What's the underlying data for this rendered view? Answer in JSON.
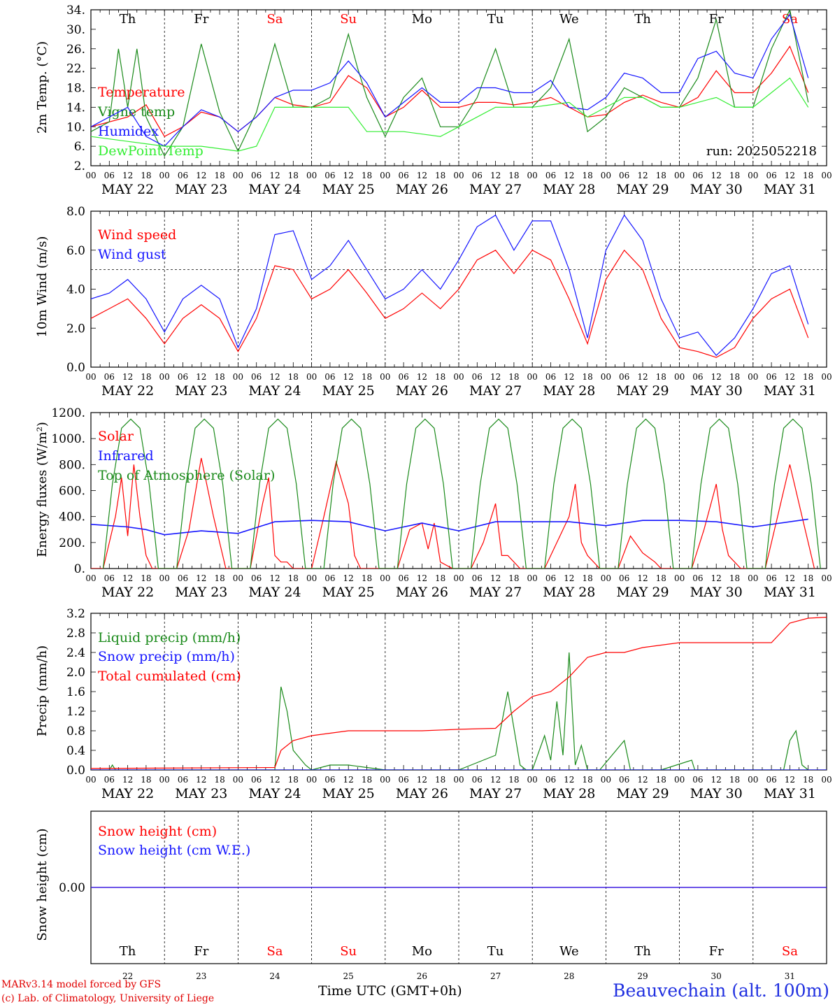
{
  "footer": {
    "credit_line1": "MARv3.14 model forced by GFS",
    "credit_line2": "(c) Lab. of Climatology, University of Liege",
    "xaxis_title": "Time UTC (GMT+0h)",
    "station": "Beauvechain (alt. 100m)"
  },
  "day_names": [
    "Th",
    "Fr",
    "Sa",
    "Su",
    "Mo",
    "Tu",
    "We",
    "Th",
    "Fr",
    "Sa"
  ],
  "weekend_days": [
    2,
    3,
    9
  ],
  "date_labels": [
    "MAY 22",
    "MAY 23",
    "MAY 24",
    "MAY 25",
    "MAY 26",
    "MAY 27",
    "MAY 28",
    "MAY 29",
    "MAY 30",
    "MAY 31"
  ],
  "day_numbers": [
    "22",
    "23",
    "24",
    "25",
    "26",
    "27",
    "28",
    "29",
    "30",
    "31"
  ],
  "hour_ticks": [
    "00",
    "06",
    "12",
    "18"
  ],
  "colors": {
    "red": "#ff0000",
    "dkgreen": "#1a8a1a",
    "blue": "#1515ff",
    "ltgreen": "#33ee33",
    "grid": "#000000"
  },
  "chart_data": [
    {
      "type": "line",
      "ylabel": "2m Temp. (°C)",
      "ylim": [
        2,
        34
      ],
      "yticks": [
        "34.",
        "30.",
        "26.",
        "22.",
        "18.",
        "14.",
        "10.",
        "6.",
        "2."
      ],
      "yvals": [
        34,
        30,
        26,
        22,
        18,
        14,
        10,
        6,
        2
      ],
      "annotation": "run: 2025052218",
      "x_unit": "hours since MAY 22 00 UTC",
      "series": [
        {
          "name": "Temperature",
          "color": "red",
          "x": [
            0,
            12,
            18,
            24,
            30,
            36,
            42,
            48,
            54,
            60,
            66,
            72,
            78,
            84,
            90,
            96,
            102,
            108,
            114,
            120,
            126,
            132,
            138,
            144,
            150,
            156,
            162,
            168,
            174,
            180,
            186,
            192,
            198,
            204,
            210,
            216,
            222,
            228,
            234
          ],
          "values": [
            10,
            12,
            14.5,
            8,
            10,
            13,
            12,
            9,
            12,
            16,
            14.5,
            14,
            15,
            20.5,
            18,
            12,
            14,
            17.5,
            14,
            14,
            15,
            15,
            14.5,
            15,
            16,
            14,
            12,
            12.5,
            15,
            16.5,
            15,
            14,
            16,
            21.5,
            17,
            17,
            21,
            26.5,
            17
          ]
        },
        {
          "name": "Vigne temp",
          "color": "dkgreen",
          "x": [
            0,
            6,
            9,
            12,
            15,
            18,
            24,
            30,
            36,
            42,
            48,
            54,
            60,
            66,
            72,
            78,
            84,
            87,
            90,
            96,
            102,
            108,
            114,
            120,
            126,
            132,
            138,
            144,
            150,
            156,
            162,
            168,
            174,
            180,
            186,
            192,
            198,
            204,
            210,
            216,
            222,
            228,
            234
          ],
          "values": [
            9,
            11,
            26,
            14,
            26,
            12,
            4,
            10,
            27,
            13,
            5,
            13,
            27,
            14,
            14,
            16,
            29,
            22,
            16,
            8,
            16,
            20,
            10,
            10,
            16,
            26,
            14,
            14,
            18,
            28,
            9,
            12,
            18,
            16,
            14,
            14,
            20,
            32,
            14,
            14,
            26,
            34,
            15
          ]
        },
        {
          "name": "Humidex",
          "color": "blue",
          "x": [
            0,
            6,
            12,
            18,
            24,
            30,
            36,
            42,
            48,
            54,
            60,
            66,
            72,
            78,
            84,
            90,
            96,
            102,
            108,
            114,
            120,
            126,
            132,
            138,
            144,
            150,
            156,
            162,
            168,
            174,
            180,
            186,
            192,
            198,
            204,
            210,
            216,
            222,
            228,
            234
          ],
          "values": [
            10,
            12,
            14,
            8,
            6,
            10,
            13.5,
            12,
            9,
            12,
            16,
            17.5,
            17.5,
            19,
            23.5,
            19,
            12,
            15,
            18,
            15,
            15,
            18,
            18,
            17,
            17,
            19.5,
            14,
            13.5,
            16,
            21,
            20,
            17,
            17,
            24,
            25.5,
            21,
            20,
            28,
            33,
            20
          ]
        },
        {
          "name": "DewPoint Temp",
          "color": "ltgreen",
          "x": [
            0,
            6,
            12,
            18,
            24,
            30,
            36,
            42,
            48,
            54,
            60,
            66,
            72,
            78,
            84,
            90,
            96,
            102,
            108,
            114,
            120,
            126,
            132,
            138,
            144,
            150,
            156,
            162,
            168,
            174,
            180,
            186,
            192,
            198,
            204,
            210,
            216,
            222,
            228,
            234
          ],
          "values": [
            8,
            7.5,
            7,
            6.5,
            6,
            6,
            6,
            5.5,
            5,
            6,
            14,
            14,
            14,
            14,
            14,
            9,
            9,
            9,
            8.5,
            8,
            10,
            12,
            14,
            14,
            14,
            14.5,
            15,
            12,
            14,
            16,
            16,
            14,
            14,
            15,
            16,
            14,
            14,
            17,
            20,
            14
          ]
        }
      ]
    },
    {
      "type": "line",
      "ylabel": "10m Wind (m/s)",
      "ylim": [
        0,
        8
      ],
      "yticks": [
        "8.0",
        "6.0",
        "4.0",
        "2.0",
        "0.0"
      ],
      "yvals": [
        8,
        6,
        4,
        2,
        0
      ],
      "ref_line": 5,
      "x_unit": "hours since MAY 22 00 UTC",
      "series": [
        {
          "name": "Wind speed",
          "color": "red",
          "x": [
            0,
            6,
            12,
            18,
            24,
            30,
            36,
            42,
            48,
            54,
            60,
            66,
            72,
            78,
            84,
            90,
            96,
            102,
            108,
            114,
            120,
            126,
            132,
            138,
            144,
            150,
            156,
            162,
            168,
            174,
            180,
            186,
            192,
            198,
            204,
            210,
            216,
            222,
            228,
            234
          ],
          "values": [
            2.5,
            3,
            3.5,
            2.5,
            1.2,
            2.5,
            3.2,
            2.5,
            0.8,
            2.5,
            5.2,
            5,
            3.5,
            4,
            5,
            3.8,
            2.5,
            3,
            3.8,
            3,
            4,
            5.5,
            6,
            4.8,
            6,
            5.5,
            3.5,
            1.2,
            4.5,
            6,
            5,
            2.5,
            1,
            0.8,
            0.5,
            1,
            2.5,
            3.5,
            4,
            1.5
          ]
        },
        {
          "name": "Wind gust",
          "color": "blue",
          "x": [
            0,
            6,
            12,
            18,
            24,
            30,
            36,
            42,
            48,
            54,
            60,
            66,
            72,
            78,
            84,
            90,
            96,
            102,
            108,
            114,
            120,
            126,
            132,
            138,
            144,
            150,
            156,
            162,
            168,
            174,
            180,
            186,
            192,
            198,
            204,
            210,
            216,
            222,
            228,
            234
          ],
          "values": [
            3.5,
            3.8,
            4.5,
            3.5,
            1.8,
            3.5,
            4.2,
            3.5,
            1,
            3,
            6.8,
            7,
            4.5,
            5.2,
            6.5,
            5,
            3.5,
            4,
            5,
            4,
            5.5,
            7.2,
            7.8,
            6,
            7.5,
            7.5,
            5,
            1.5,
            6,
            7.8,
            6.5,
            3.5,
            1.5,
            1.8,
            0.6,
            1.5,
            3,
            4.8,
            5.2,
            2.2
          ]
        }
      ]
    },
    {
      "type": "line",
      "ylabel": "Energy fluxes (W/m²)",
      "ylim": [
        0,
        1200
      ],
      "yticks": [
        "1200.",
        "1000.",
        "800.",
        "600.",
        "400.",
        "200.",
        "0."
      ],
      "yvals": [
        1200,
        1000,
        800,
        600,
        400,
        200,
        0
      ],
      "x_unit": "hours since MAY 22 00 UTC",
      "series": [
        {
          "name": "Solar",
          "color": "red",
          "x": [
            0,
            4,
            8,
            10,
            12,
            14,
            16,
            18,
            20,
            28,
            32,
            36,
            40,
            44,
            52,
            56,
            58,
            60,
            62,
            64,
            66,
            72,
            76,
            80,
            84,
            86,
            88,
            92,
            100,
            104,
            108,
            110,
            112,
            114,
            118,
            124,
            128,
            132,
            134,
            136,
            140,
            148,
            152,
            156,
            158,
            160,
            162,
            166,
            172,
            176,
            180,
            184,
            186,
            196,
            200,
            204,
            206,
            208,
            212,
            220,
            224,
            228,
            232,
            236
          ],
          "values": [
            0,
            0,
            400,
            700,
            250,
            800,
            400,
            100,
            0,
            0,
            300,
            850,
            400,
            0,
            0,
            500,
            700,
            100,
            50,
            50,
            0,
            0,
            400,
            820,
            500,
            100,
            0,
            0,
            0,
            300,
            350,
            150,
            350,
            50,
            0,
            0,
            200,
            500,
            100,
            100,
            0,
            0,
            200,
            400,
            650,
            200,
            100,
            0,
            0,
            250,
            120,
            50,
            0,
            0,
            300,
            650,
            300,
            100,
            0,
            0,
            400,
            800,
            400,
            0
          ]
        },
        {
          "name": "Infrared",
          "color": "blue",
          "x": [
            0,
            12,
            18,
            24,
            36,
            48,
            60,
            72,
            84,
            96,
            108,
            120,
            132,
            144,
            156,
            168,
            180,
            192,
            204,
            216,
            234
          ],
          "values": [
            340,
            320,
            300,
            260,
            290,
            270,
            360,
            370,
            360,
            290,
            350,
            290,
            360,
            360,
            360,
            330,
            370,
            370,
            360,
            320,
            380
          ]
        },
        {
          "name": "Top of Atmosphere (Solar)",
          "color": "dkgreen",
          "x": [
            4,
            7,
            10,
            13,
            16,
            19,
            22
          ],
          "values": [
            0,
            650,
            1080,
            1150,
            1080,
            650,
            0
          ],
          "repeat_daily": true
        }
      ]
    },
    {
      "type": "line",
      "ylabel": "Precip (mm/h)",
      "ylim": [
        0,
        3.2
      ],
      "yticks": [
        "3.2",
        "2.8",
        "2.4",
        "2.0",
        "1.6",
        "1.2",
        "0.8",
        "0.4",
        "0.0"
      ],
      "yvals": [
        3.2,
        2.8,
        2.4,
        2.0,
        1.6,
        1.2,
        0.8,
        0.4,
        0.0
      ],
      "x_unit": "hours since MAY 22 00 UTC",
      "series": [
        {
          "name": "Liquid precip (mm/h)",
          "color": "dkgreen",
          "x": [
            0,
            6,
            7,
            8,
            48,
            60,
            62,
            64,
            66,
            70,
            72,
            78,
            84,
            90,
            96,
            120,
            132,
            136,
            140,
            142,
            144,
            148,
            150,
            152,
            154,
            156,
            158,
            160,
            162,
            166,
            174,
            176,
            178,
            186,
            196,
            197,
            198,
            226,
            228,
            230,
            232,
            234
          ],
          "values": [
            0,
            0,
            0.1,
            0,
            0,
            0,
            1.7,
            1.2,
            0.4,
            0.1,
            0,
            0.1,
            0.1,
            0.05,
            0,
            0,
            0.3,
            1.6,
            0.1,
            0,
            0,
            0.7,
            0.2,
            1.4,
            0.3,
            2.4,
            0.1,
            0.5,
            0,
            0,
            0.6,
            0,
            0,
            0,
            0.2,
            0,
            0,
            0,
            0.6,
            0.8,
            0.1,
            0
          ]
        },
        {
          "name": "Snow precip (mm/h)",
          "color": "blue",
          "x": [
            0,
            240
          ],
          "values": [
            0,
            0
          ]
        },
        {
          "name": "Total cumulated (cm)",
          "color": "red",
          "x": [
            0,
            60,
            62,
            66,
            72,
            84,
            96,
            108,
            120,
            132,
            138,
            144,
            150,
            156,
            162,
            168,
            174,
            180,
            186,
            192,
            198,
            204,
            210,
            216,
            222,
            228,
            234,
            240
          ],
          "values": [
            0.03,
            0.05,
            0.4,
            0.6,
            0.7,
            0.8,
            0.8,
            0.8,
            0.83,
            0.85,
            1.2,
            1.5,
            1.6,
            1.9,
            2.3,
            2.4,
            2.4,
            2.5,
            2.55,
            2.6,
            2.6,
            2.6,
            2.6,
            2.6,
            2.6,
            3.0,
            3.1,
            3.12
          ]
        }
      ]
    },
    {
      "type": "line",
      "ylabel": "Snow height (cm)",
      "ylim": [
        -1,
        1
      ],
      "yticks": [
        "0.00"
      ],
      "yvals": [
        0
      ],
      "x_unit": "hours since MAY 22 00 UTC",
      "series": [
        {
          "name": "Snow height (cm)",
          "color": "red",
          "x": [
            0,
            240
          ],
          "values": [
            0,
            0
          ]
        },
        {
          "name": "Snow height (cm W.E.)",
          "color": "blue",
          "x": [
            0,
            240
          ],
          "values": [
            0,
            0
          ]
        }
      ]
    }
  ]
}
